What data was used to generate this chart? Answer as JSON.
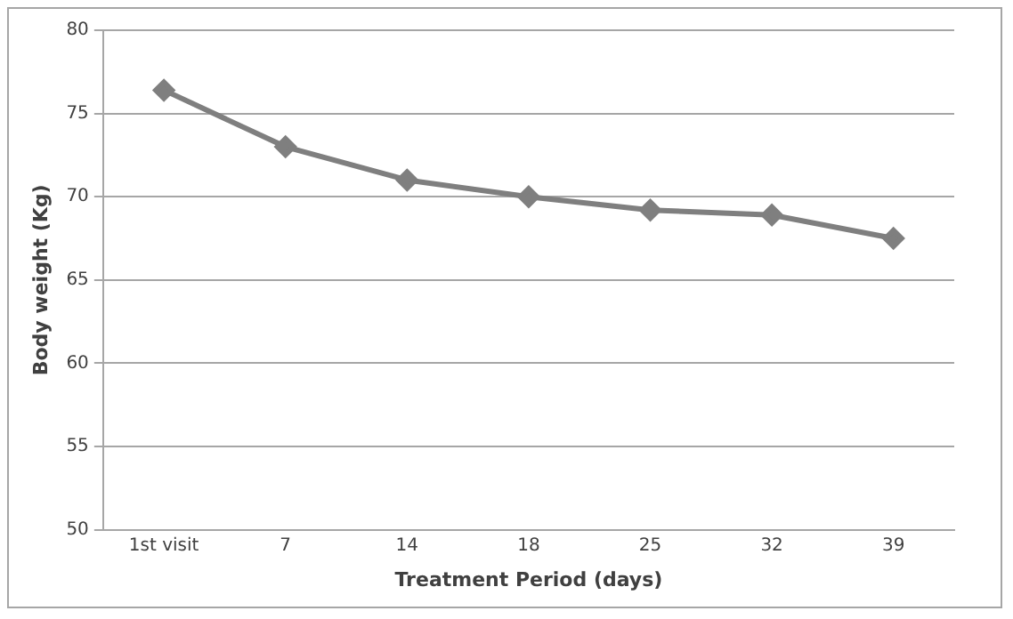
{
  "chart_data": {
    "type": "line",
    "xlabel": "Treatment Period (days)",
    "ylabel": "Body weight (Kg)",
    "categories": [
      "1st visit",
      "7",
      "14",
      "18",
      "25",
      "32",
      "39"
    ],
    "series": [
      {
        "color": "#7f7f7f",
        "values": [
          76.4,
          73,
          71,
          70,
          69.2,
          68.9,
          67.5
        ]
      }
    ],
    "ylim": [
      50,
      80
    ],
    "yticks": [
      50,
      55,
      60,
      65,
      70,
      75,
      80
    ],
    "grid": "y",
    "legend": false,
    "marker": "diamond",
    "line_style": "solid"
  }
}
